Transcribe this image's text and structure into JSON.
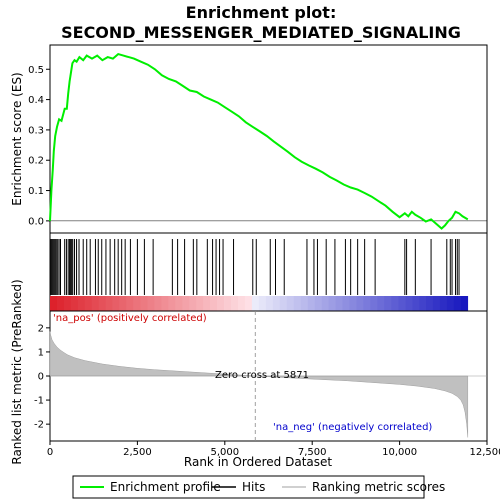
{
  "chart_data": {
    "type": "line",
    "title": "Enrichment plot:\nSECOND_MESSENGER_MEDIATED_SIGNALING",
    "title_lines": [
      "Enrichment plot:",
      "SECOND_MESSENGER_MEDIATED_SIGNALING"
    ],
    "top_panel": {
      "ylabel": "Enrichment score (ES)",
      "ylim": [
        -0.04,
        0.58
      ],
      "yticks": [
        0.0,
        0.1,
        0.2,
        0.3,
        0.4,
        0.5
      ],
      "ytick_labels": [
        "0.0",
        "0.1",
        "0.2",
        "0.3",
        "0.4",
        "0.5"
      ],
      "series": [
        {
          "name": "Enrichment profile",
          "color": "#00ee00",
          "x": [
            0,
            40,
            80,
            110,
            150,
            200,
            260,
            330,
            420,
            480,
            520,
            560,
            600,
            640,
            700,
            760,
            840,
            950,
            1050,
            1200,
            1350,
            1500,
            1650,
            1800,
            1950,
            2100,
            2250,
            2400,
            2600,
            2800,
            3000,
            3200,
            3400,
            3600,
            3800,
            4000,
            4200,
            4400,
            4600,
            4800,
            5000,
            5200,
            5400,
            5600,
            5800,
            6000,
            6200,
            6400,
            6600,
            6800,
            7000,
            7200,
            7400,
            7600,
            7800,
            8000,
            8200,
            8400,
            8600,
            8800,
            9000,
            9200,
            9400,
            9600,
            9800,
            10000,
            10150,
            10250,
            10350,
            10450,
            10600,
            10750,
            10900,
            11050,
            11200,
            11300,
            11400,
            11500,
            11600,
            11700,
            11800,
            11950
          ],
          "y": [
            0.0,
            0.1,
            0.17,
            0.23,
            0.28,
            0.31,
            0.335,
            0.33,
            0.37,
            0.37,
            0.42,
            0.46,
            0.49,
            0.52,
            0.53,
            0.525,
            0.54,
            0.53,
            0.545,
            0.535,
            0.545,
            0.53,
            0.54,
            0.535,
            0.55,
            0.545,
            0.54,
            0.535,
            0.525,
            0.515,
            0.5,
            0.48,
            0.468,
            0.46,
            0.445,
            0.43,
            0.425,
            0.41,
            0.4,
            0.39,
            0.375,
            0.36,
            0.345,
            0.325,
            0.31,
            0.295,
            0.28,
            0.262,
            0.245,
            0.228,
            0.21,
            0.195,
            0.183,
            0.172,
            0.16,
            0.145,
            0.133,
            0.12,
            0.11,
            0.103,
            0.092,
            0.08,
            0.065,
            0.05,
            0.03,
            0.012,
            0.025,
            0.015,
            0.03,
            0.02,
            0.01,
            -0.002,
            0.005,
            -0.01,
            -0.025,
            -0.015,
            0.0,
            0.01,
            0.03,
            0.025,
            0.015,
            0.005
          ]
        }
      ]
    },
    "hits": {
      "name": "Hits",
      "positions": [
        30,
        60,
        90,
        120,
        150,
        180,
        220,
        260,
        300,
        420,
        470,
        520,
        560,
        590,
        620,
        650,
        700,
        760,
        830,
        950,
        1050,
        1150,
        1300,
        1380,
        1480,
        1600,
        1720,
        1850,
        1950,
        2050,
        2150,
        2300,
        2500,
        2700,
        2950,
        3500,
        3650,
        3850,
        4100,
        4200,
        4500,
        4650,
        4750,
        4850,
        4950,
        5250,
        5800,
        5900,
        6300,
        6450,
        6700,
        7350,
        7550,
        7650,
        7900,
        8150,
        8450,
        8600,
        8800,
        9000,
        9300,
        10150,
        10200,
        10450,
        10900,
        11350,
        11450,
        11500,
        11600,
        11650,
        11700
      ]
    },
    "ranking_panel": {
      "ylabel": "Ranked list metric (PreRanked)",
      "ylim": [
        -2.7,
        2.7
      ],
      "yticks": [
        2,
        1,
        0,
        -1,
        -2
      ],
      "ytick_labels": [
        "2",
        "1",
        "0",
        "-1",
        "-2"
      ],
      "series": [
        {
          "name": "Ranking metric scores",
          "color": "#c0c0c0",
          "x": [
            0,
            20,
            60,
            120,
            200,
            300,
            400,
            500,
            700,
            1000,
            1500,
            2000,
            2500,
            3000,
            4000,
            5000,
            5871,
            6500,
            7500,
            8500,
            9500,
            10000,
            10500,
            11000,
            11300,
            11500,
            11650,
            11750,
            11820,
            11870,
            11920,
            11950
          ],
          "y": [
            1.85,
            1.7,
            1.5,
            1.35,
            1.2,
            1.07,
            0.97,
            0.88,
            0.76,
            0.64,
            0.5,
            0.4,
            0.32,
            0.26,
            0.17,
            0.08,
            0.0,
            -0.05,
            -0.13,
            -0.2,
            -0.3,
            -0.35,
            -0.42,
            -0.52,
            -0.62,
            -0.72,
            -0.85,
            -1.0,
            -1.2,
            -1.5,
            -2.0,
            -2.55
          ]
        }
      ],
      "zero_cross": 5871,
      "annotations": {
        "pos": "'na_pos' (positively correlated)",
        "neg": "'na_neg' (negatively correlated)",
        "zero": "Zero cross at 5871"
      }
    },
    "xlabel": "Rank in Ordered Dataset",
    "xlim": [
      0,
      12500
    ],
    "xticks": [
      0,
      2500,
      5000,
      7500,
      10000,
      12500
    ],
    "xtick_labels": [
      "0",
      "2,500",
      "5,000",
      "7,500",
      "10,000",
      "12,500"
    ],
    "n_genes": 11950,
    "legend": {
      "placement": "bottom",
      "items": [
        {
          "label": "Enrichment profile",
          "color": "#00ee00",
          "style": "line"
        },
        {
          "label": "Hits",
          "color": "#000000",
          "style": "line"
        },
        {
          "label": "Ranking metric scores",
          "color": "#c0c0c0",
          "style": "line"
        }
      ]
    },
    "grid": false
  }
}
